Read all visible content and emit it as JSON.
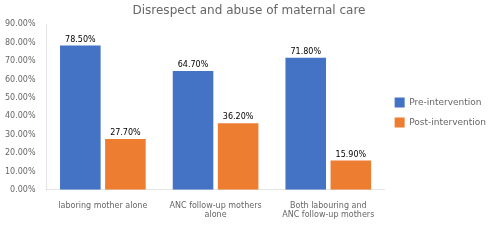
{
  "chart_data": {
    "type": "bar",
    "title": "Disrespect and abuse of maternal care",
    "categories": [
      "laboring mother alone",
      "ANC follow-up mothers\nalone",
      "Both labouring and\nANC follow-up mothers"
    ],
    "series": [
      {
        "name": "Pre-intervention",
        "color": "#4472C4",
        "values": [
          78.5,
          64.7,
          71.8
        ],
        "value_labels": [
          "78.50%",
          "64.70%",
          "71.80%"
        ]
      },
      {
        "name": "Post-intervention",
        "color": "#ED7D31",
        "values": [
          27.7,
          36.2,
          15.9
        ],
        "value_labels": [
          "27.70%",
          "36.20%",
          "15.90%"
        ]
      }
    ],
    "ylim": [
      0,
      90
    ],
    "yticks": [
      {
        "value": 0,
        "label": "0.00%"
      },
      {
        "value": 10,
        "label": "10.00%"
      },
      {
        "value": 20,
        "label": "20.00%"
      },
      {
        "value": 30,
        "label": "30.00%"
      },
      {
        "value": 40,
        "label": "40.00%"
      },
      {
        "value": 50,
        "label": "50.00%"
      },
      {
        "value": 60,
        "label": "60.00%"
      },
      {
        "value": 70,
        "label": "70.00%"
      },
      {
        "value": 80,
        "label": "80.00%"
      },
      {
        "value": 90,
        "label": "90.00%"
      }
    ],
    "grid": false,
    "legend": "right",
    "data_labels": true
  }
}
